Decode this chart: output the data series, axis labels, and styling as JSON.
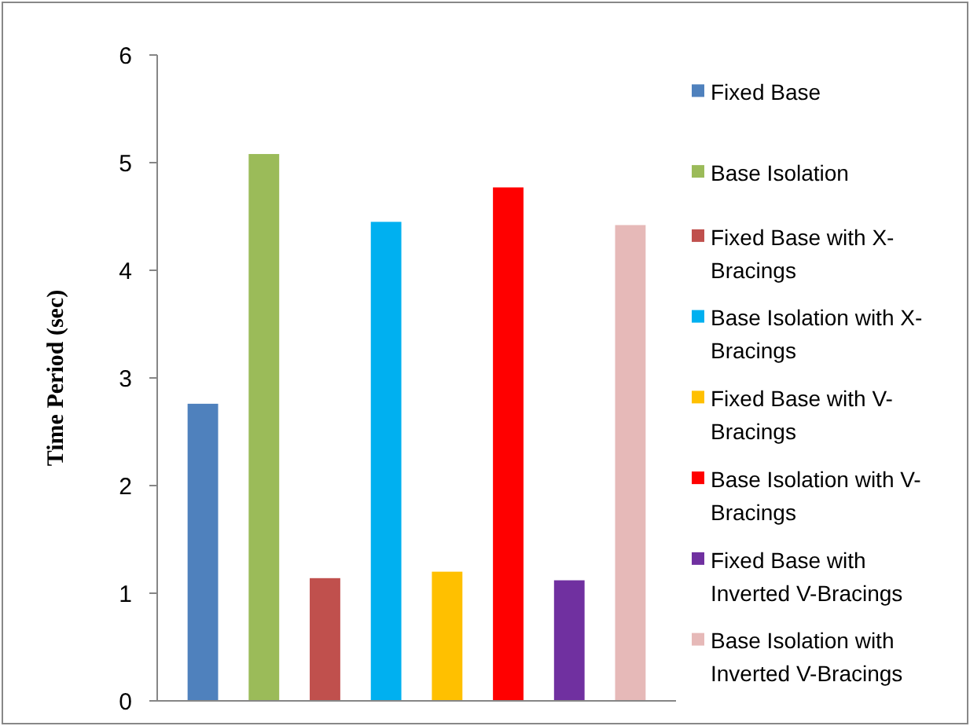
{
  "chart_data": {
    "type": "bar",
    "ylabel": "Time Period (sec)",
    "categories": [
      null
    ],
    "ylim": [
      0,
      6
    ],
    "yticks": [
      0,
      1,
      2,
      3,
      4,
      5,
      6
    ],
    "grid": false,
    "legend": "right",
    "series": [
      {
        "name": "Fixed Base",
        "color": "#4f81bd",
        "values": [
          2.76
        ]
      },
      {
        "name": "Base Isolation",
        "color": "#9bbb59",
        "values": [
          5.08
        ]
      },
      {
        "name": "Fixed Base with X-Bracings",
        "color": "#c0504d",
        "values": [
          1.14
        ]
      },
      {
        "name": "Base Isolation with X-Bracings",
        "color": "#00b0f0",
        "values": [
          4.45
        ]
      },
      {
        "name": "Fixed Base with V-Bracings",
        "color": "#ffc000",
        "values": [
          1.2
        ]
      },
      {
        "name": "Base Isolation with V-Bracings",
        "color": "#ff0000",
        "values": [
          4.77
        ]
      },
      {
        "name": "Fixed Base with Inverted V-Bracings",
        "color": "#7030a0",
        "values": [
          1.12
        ]
      },
      {
        "name": "Base Isolation with Inverted V-Bracings",
        "color": "#e6b9b8",
        "values": [
          4.42
        ]
      }
    ]
  }
}
